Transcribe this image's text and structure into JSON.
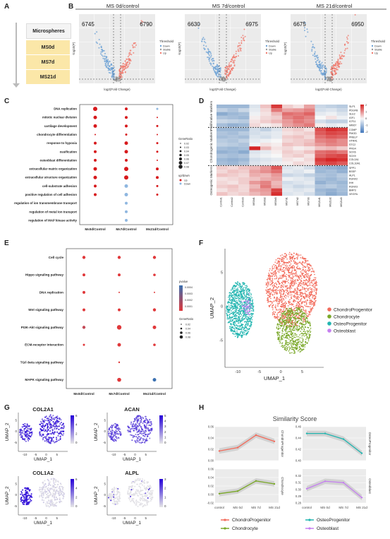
{
  "panel_labels": [
    "A",
    "B",
    "C",
    "D",
    "E",
    "F",
    "G",
    "H"
  ],
  "panelA": {
    "header": "Microspheres",
    "items": [
      "MS0d",
      "MS7d",
      "MS21d"
    ],
    "colors": {
      "header_bg": "#f4f4f4",
      "item_bg": "#fbe7a8",
      "arrow": "#aaaaaa"
    }
  },
  "panelB": {
    "xlabel": "log2(Fold Change)",
    "ylabel": "-log10(P)",
    "legend_title": "Threshold",
    "legend_items": [
      "Down",
      "Stable",
      "Up"
    ],
    "colors": {
      "down": "#6ea3d6",
      "stable": "#9a9a9a",
      "up": "#f07a6e",
      "bg": "#ebebeb"
    },
    "plots": [
      {
        "title": "MS 0d/control",
        "down": "6745",
        "up": "6790"
      },
      {
        "title": "MS 7d/control",
        "down": "6630",
        "up": "6975"
      },
      {
        "title": "MS 21d/control",
        "down": "6675",
        "up": "6950"
      }
    ]
  },
  "panelC": {
    "terms": [
      "DNA replication",
      "mitotic nuclear division",
      "cartilage development",
      "chondrocyte differentiation",
      "response to hypoxia",
      "ossification",
      "osteoblast differentiation",
      "extracellular matrix organization",
      "extracellular structure organization",
      "cell-substrate adhesion",
      "positive regulation of cell adhesion",
      "regulation of ion transmembrane transport",
      "regulation of metal ion transport",
      "regulation of MAP kinase activity"
    ],
    "groups": [
      "Ms0d/Control",
      "Ms7d/Control",
      "Ms21d/Control"
    ],
    "legend_size_title": "GeneRatio",
    "legend_sizes": [
      "0.02",
      "0.03",
      "0.04",
      "0.05",
      "0.06",
      "0.07",
      "0.08"
    ],
    "legend_color_title": "up/down",
    "legend_colors": [
      "Up",
      "Down"
    ]
  },
  "panelD": {
    "groups": [
      "Proliferative Markers",
      "Chondrogenic Markers",
      "Osteogenic Markers"
    ],
    "genes": [
      "SLP1",
      "PDGFB",
      "SLE2",
      "IGF1",
      "ICF11",
      "MKI67",
      "COMP",
      "PMOD",
      "PRELP",
      "HTRA1",
      "STC2",
      "PRG4",
      "SOX6",
      "SOX9",
      "COL2A1",
      "COL10A1",
      "SPP1",
      "BSSP",
      "ALPL",
      "RUNX2",
      "IHH",
      "RUNX3",
      "BMP3",
      "VEGFA"
    ],
    "samples": [
      "Control1",
      "Control2",
      "Control3",
      "MS0d1",
      "MS0d2",
      "MS0d3",
      "MS7d1",
      "MS7d2",
      "MS7d3",
      "MS21d1",
      "MS21d2",
      "MS21d3"
    ],
    "scale_ticks": [
      "2",
      "1",
      "0",
      "-1",
      "-2"
    ]
  },
  "panelE": {
    "terms": [
      "Cell cycle",
      "Hippo signaling pathway",
      "DNA replication",
      "Wnt signaling pathway",
      "PI3K-Akt signaling pathway",
      "ECM-receptor interaction",
      "TGF-beta signaling pathway",
      "MAPK signaling pathway"
    ],
    "groups": [
      "Ms0d/Control",
      "Ms7d/Control",
      "Ms21d/Control"
    ],
    "legend_color_title": "pvalue",
    "legend_color_ticks": [
      "0.0001",
      "0.0002",
      "0.0003",
      "0.0004"
    ],
    "legend_size_title": "GeneRatio",
    "legend_sizes": [
      "0.02",
      "0.04",
      "0.06",
      "0.08"
    ]
  },
  "panelF": {
    "xlabel": "UMAP_1",
    "ylabel": "UMAP_2",
    "xticks": [
      "-10",
      "-5",
      "0",
      "5"
    ],
    "yticks": [
      "5",
      "0",
      "-5"
    ],
    "legend": [
      {
        "name": "ChondroProgenitor",
        "color": "#f26b5b"
      },
      {
        "name": "Chondrocyte",
        "color": "#7aa829"
      },
      {
        "name": "OsteoProgenitor",
        "color": "#22b5b0"
      },
      {
        "name": "Osteoblast",
        "color": "#c57ff0"
      }
    ]
  },
  "panelG": {
    "xlabel": "UMAP_1",
    "ylabel": "UMAP_2",
    "genes": [
      {
        "name": "COL2A1",
        "ticks": [
          "6",
          "4",
          "2",
          "0"
        ]
      },
      {
        "name": "ACAN",
        "ticks": [
          "5",
          "4",
          "3",
          "2",
          "1",
          "0"
        ]
      },
      {
        "name": "COL1A2",
        "ticks": [
          "6",
          "4",
          "2",
          "0"
        ]
      },
      {
        "name": "ALPL",
        "ticks": [
          "3",
          "2",
          "1",
          "0"
        ]
      }
    ],
    "xticks": [
      "-10",
      "-5",
      "0",
      "5"
    ],
    "yticks": [
      "5",
      "0",
      "-5"
    ]
  },
  "panelH": {
    "title": "Similarity Score",
    "x": [
      "control",
      "MS 0d",
      "MS 7d",
      "MS 21d"
    ],
    "legend": [
      {
        "name": "ChondroProgenitor",
        "color": "#f26b5b"
      },
      {
        "name": "Chondrocyte",
        "color": "#7aa829"
      },
      {
        "name": "OsteoProgenitor",
        "color": "#22b5b0"
      },
      {
        "name": "Osteoblast",
        "color": "#c57ff0"
      }
    ]
  },
  "chart_data": [
    {
      "type": "line",
      "title": "ChondroProgenitor",
      "x": [
        "control",
        "MS 0d",
        "MS 7d",
        "MS 21d"
      ],
      "values": [
        0.017,
        0.023,
        0.045,
        0.034
      ],
      "ylim": [
        0.0,
        0.06
      ],
      "yticks": [
        "0.06",
        "0.04",
        "0.02",
        "0.00"
      ]
    },
    {
      "type": "line",
      "title": "OsteoProgenitor",
      "x": [
        "control",
        "MS 0d",
        "MS 7d",
        "MS 21d"
      ],
      "values": [
        0.448,
        0.448,
        0.438,
        0.413
      ],
      "ylim": [
        0.4,
        0.46
      ],
      "yticks": [
        "0.46",
        "0.44",
        "0.42",
        "0.40"
      ]
    },
    {
      "type": "line",
      "title": "Chondrocyte",
      "x": [
        "control",
        "MS 0d",
        "MS 7d",
        "MS 21d"
      ],
      "values": [
        0.002,
        0.008,
        0.032,
        0.025
      ],
      "ylim": [
        -0.02,
        0.06
      ],
      "yticks": [
        "0.06",
        "0.04",
        "0.02",
        "0.00",
        "-0.02"
      ]
    },
    {
      "type": "line",
      "title": "Osteoblast",
      "x": [
        "control",
        "MS 0d",
        "MS 7d",
        "MS 21d"
      ],
      "values": [
        0.301,
        0.312,
        0.31,
        0.288
      ],
      "ylim": [
        0.28,
        0.33
      ],
      "yticks": [
        "0.32",
        "0.31",
        "0.30",
        "0.29",
        "0.28"
      ]
    }
  ]
}
